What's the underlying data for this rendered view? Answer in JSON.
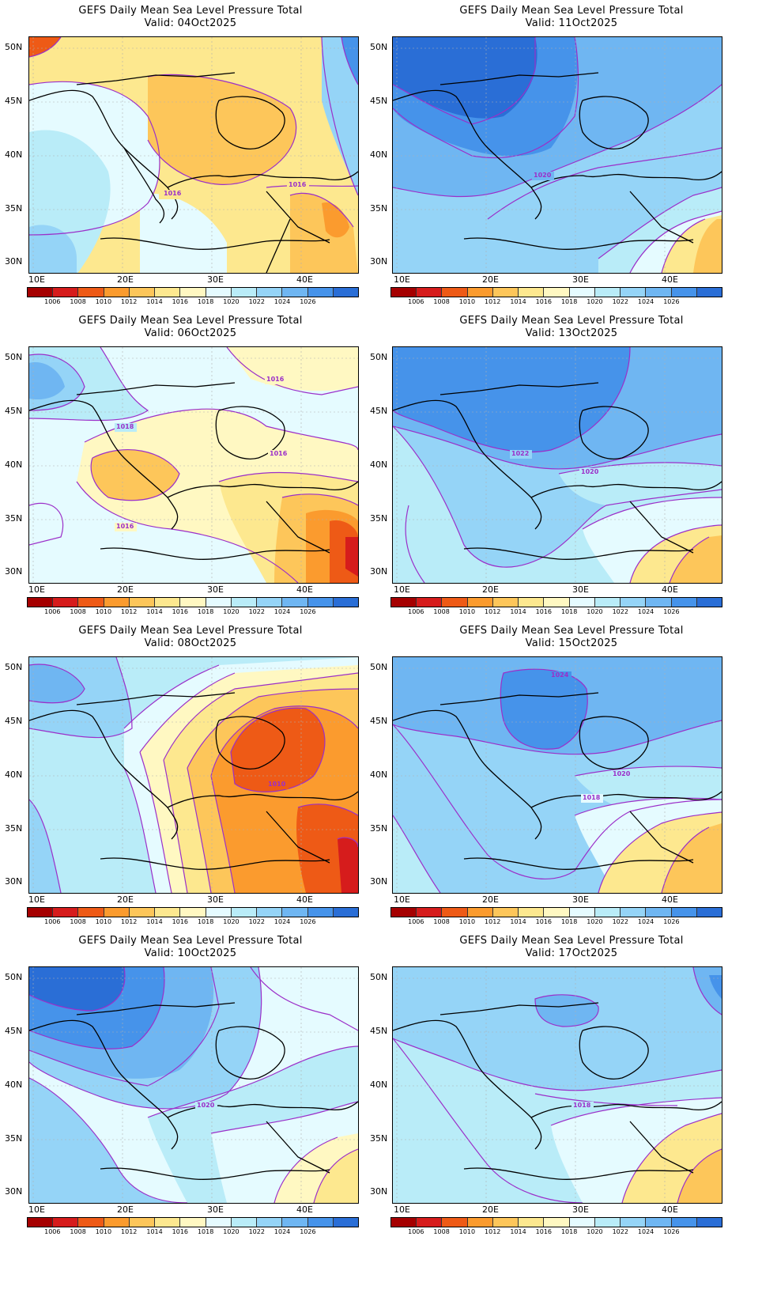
{
  "title": "GEFS Daily Mean Sea Level Pressure Total",
  "legend": {
    "labels": [
      "1006",
      "1008",
      "1010",
      "1012",
      "1014",
      "1016",
      "1018",
      "1020",
      "1022",
      "1024",
      "1026"
    ],
    "colors": [
      "#a50000",
      "#d61c1c",
      "#ee5a16",
      "#fb9b2e",
      "#fdc65a",
      "#fde88f",
      "#fff8c2",
      "#e5fbff",
      "#b9ecf8",
      "#95d4f7",
      "#6fb6f2",
      "#4693ea",
      "#2a6ed6"
    ]
  },
  "axes": {
    "lat_labels": [
      "50N",
      "45N",
      "40N",
      "35N",
      "30N"
    ],
    "lon_labels": [
      "10E",
      "20E",
      "30E",
      "40E"
    ]
  },
  "panels": [
    {
      "valid": "Valid: 04Oct2025",
      "contour_labels": [
        "1016",
        "1016"
      ]
    },
    {
      "valid": "Valid: 11Oct2025",
      "contour_labels": [
        "1020"
      ]
    },
    {
      "valid": "Valid: 06Oct2025",
      "contour_labels": [
        "1016",
        "1018",
        "1016",
        "1016"
      ]
    },
    {
      "valid": "Valid: 13Oct2025",
      "contour_labels": [
        "1020",
        "1022"
      ]
    },
    {
      "valid": "Valid: 08Oct2025",
      "contour_labels": [
        "1010"
      ]
    },
    {
      "valid": "Valid: 15Oct2025",
      "contour_labels": [
        "1024",
        "1020",
        "1018"
      ]
    },
    {
      "valid": "Valid: 10Oct2025",
      "contour_labels": [
        "1020"
      ]
    },
    {
      "valid": "Valid: 17Oct2025",
      "contour_labels": [
        "1018"
      ]
    }
  ]
}
